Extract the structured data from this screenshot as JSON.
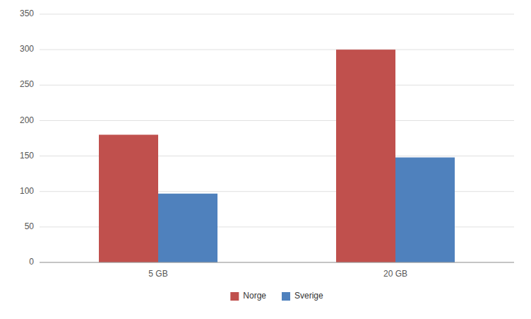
{
  "chart_data": {
    "type": "bar",
    "categories": [
      "5 GB",
      "20 GB"
    ],
    "series": [
      {
        "name": "Norge",
        "color": "#c0504d",
        "values": [
          180,
          300
        ]
      },
      {
        "name": "Sverige",
        "color": "#4f81bd",
        "values": [
          97,
          148
        ]
      }
    ],
    "ylim": [
      0,
      350
    ],
    "yticks": [
      0,
      50,
      100,
      150,
      200,
      250,
      300,
      350
    ],
    "grid": true,
    "legend": "bottom"
  }
}
